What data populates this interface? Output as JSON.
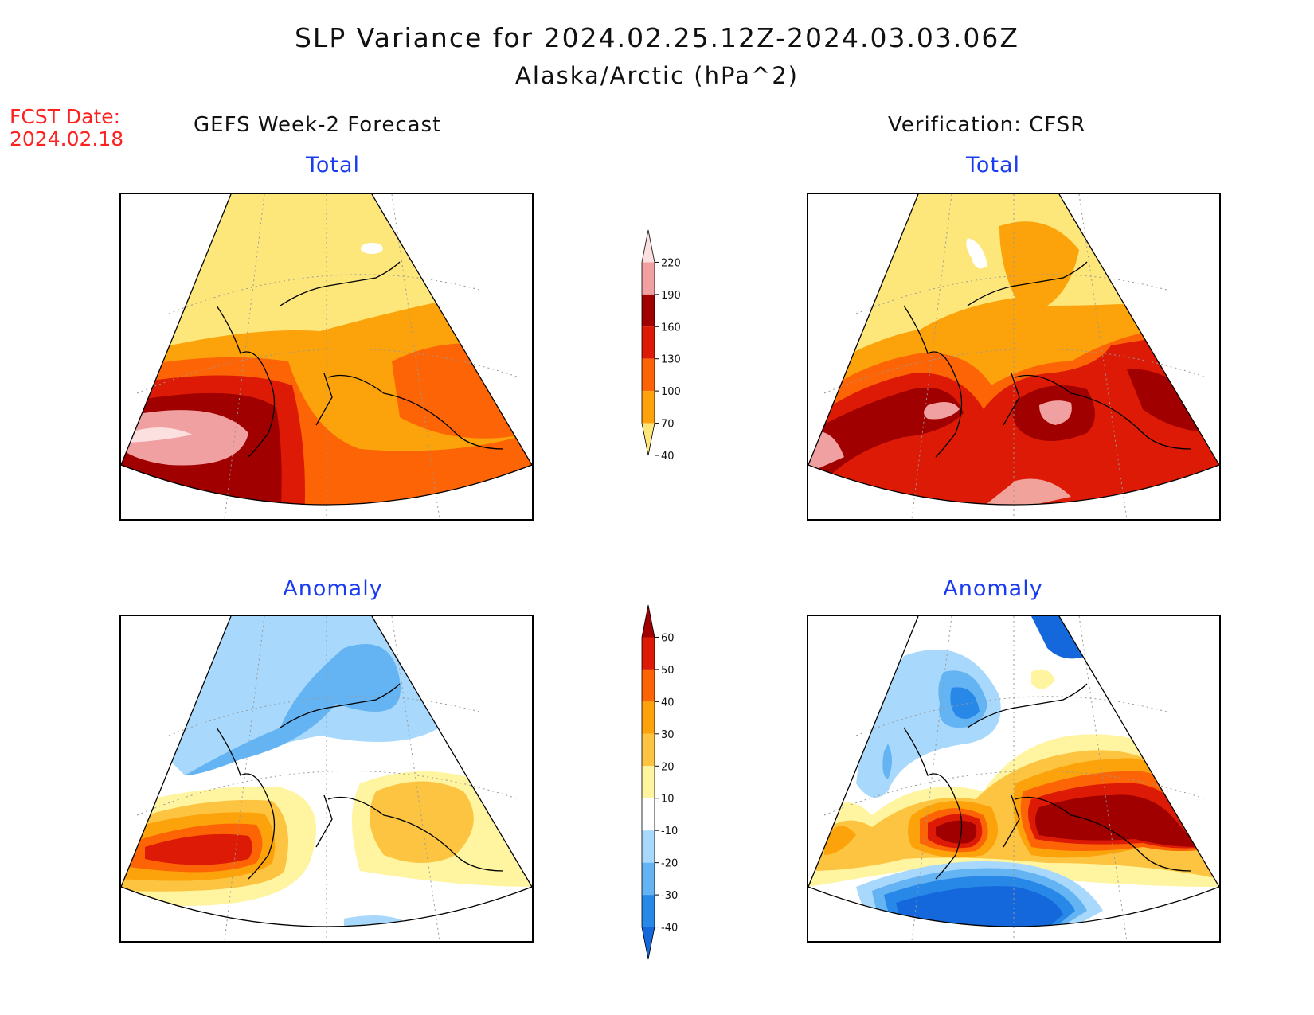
{
  "header": {
    "title": "SLP Variance for 2024.02.25.12Z-2024.03.03.06Z",
    "subtitle": "Alaska/Arctic (hPa^2)"
  },
  "fcst": {
    "label": "FCST Date:",
    "date": "2024.02.18"
  },
  "columns": {
    "left": "GEFS Week-2 Forecast",
    "right": "Verification: CFSR"
  },
  "panels": {
    "top_left": "Total",
    "top_right": "Total",
    "bottom_left": "Anomaly",
    "bottom_right": "Anomaly"
  },
  "colors": {
    "total": {
      "40-70": "#fde67a",
      "70-100": "#fca20a",
      "100-130": "#fc6405",
      "130-160": "#dc1a05",
      "160-190": "#a00000",
      "190-220": "#f0a0a0",
      "220+": "#fce0e0"
    },
    "anomaly": {
      "-40-": "#1468dc",
      "-40--30": "#2888e8",
      "-30--20": "#64b4f4",
      "-20--10": "#a8d8fc",
      "-10-10": "#ffffff",
      "10-20": "#fff4a0",
      "20-30": "#fcc440",
      "30-40": "#fca20a",
      "40-50": "#fc6405",
      "50-60": "#dc1a05",
      "60+": "#a00000"
    }
  },
  "colorbars": {
    "total": {
      "ticks": [
        "220",
        "190",
        "160",
        "130",
        "100",
        "70",
        "40"
      ]
    },
    "anomaly": {
      "ticks": [
        "60",
        "50",
        "40",
        "30",
        "20",
        "10",
        "-10",
        "-20",
        "-30",
        "-40"
      ]
    }
  }
}
